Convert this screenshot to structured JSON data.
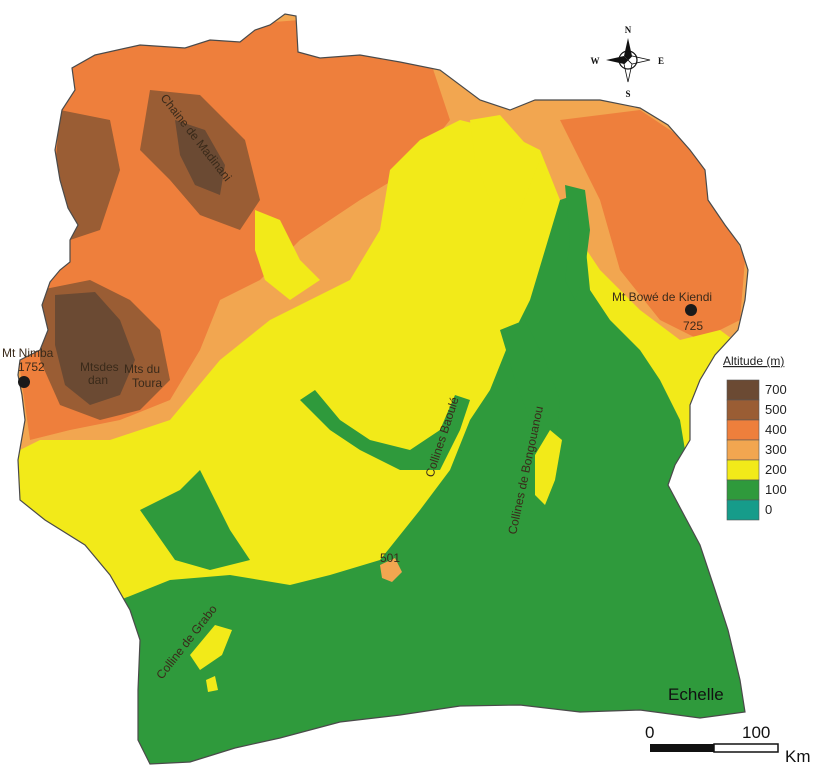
{
  "colors": {
    "c700": "#6b4a33",
    "c500": "#9a5d34",
    "c400": "#ee7f3c",
    "c300": "#f2a650",
    "c200": "#f2ea19",
    "c100": "#2f9a3c",
    "c0": "#169c8a",
    "marker": "#1a1a1a"
  },
  "compass": {
    "n": "N",
    "s": "S",
    "e": "E",
    "w": "W"
  },
  "labels": {
    "chaine_madinani": "Chaine de Madinani",
    "mt_nimba": "Mt Nimba",
    "mt_nimba_alt": "1752",
    "mts_dan_1": "Mtsdes",
    "mts_dan_2": "dan",
    "mts_toura_1": "Mts du",
    "mts_toura_2": "Toura",
    "mt_bowe": "Mt Bowé de Kiendi",
    "mt_bowe_alt": "725",
    "collines_baoule": "Collines Baoulé",
    "collines_bongouanou": "Collines de Bongouanou",
    "colline_grabo": "Colline de Grabo",
    "spot_501": "501"
  },
  "legend": {
    "title": "Altitude (m)",
    "items": [
      {
        "value": "700",
        "color": "#6b4a33"
      },
      {
        "value": "500",
        "color": "#9a5d34"
      },
      {
        "value": "400",
        "color": "#ee7f3c"
      },
      {
        "value": "300",
        "color": "#f2a650"
      },
      {
        "value": "200",
        "color": "#f2ea19"
      },
      {
        "value": "100",
        "color": "#2f9a3c"
      },
      {
        "value": "0",
        "color": "#169c8a"
      }
    ]
  },
  "scale": {
    "title": "Echelle",
    "start": "0",
    "end": "100",
    "unit": "Km"
  }
}
